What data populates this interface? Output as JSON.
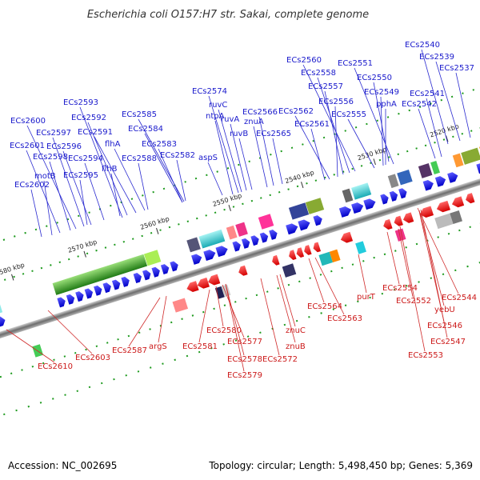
{
  "title": "Escherichia coli O157:H7 str. Sakai, complete genome",
  "footer": {
    "accession": "Accession: NC_002695",
    "summary": "Topology: circular; Length: 5,498,450 bp; Genes: 5,369"
  },
  "scale_ticks": [
    "2520 kbp",
    "2530 kbp",
    "2540 kbp",
    "2550 kbp",
    "2560 kbp",
    "2570 kbp",
    "2580 kbp"
  ],
  "forward_labels": [
    "ECs2540",
    "ECs2539",
    "ECs2537",
    "ECs2551",
    "ECs2550",
    "ECs2560",
    "ECs2558",
    "ECs2557",
    "ECs2549",
    "ECs2541",
    "ECs2542",
    "ECs2556",
    "ECs2574",
    "ECs2562",
    "ECs2555",
    "pphA",
    "ruvC",
    "ECs2566",
    "ruvA",
    "znuA",
    "ECs2561",
    "ntpA",
    "ruvB",
    "ECs2565",
    "ECs2593",
    "ECs2585",
    "ECs2592",
    "ECs2600",
    "ECs2584",
    "ECs2597",
    "ECs2591",
    "flhA",
    "ECs2601",
    "ECs2596",
    "ECs2583",
    "ECs2598",
    "ECs2594",
    "ECs2588",
    "ECs2582",
    "aspS",
    "motB",
    "flhB",
    "ECs2595",
    "ECs2602"
  ],
  "reverse_labels": [
    "purT",
    "ECs2554",
    "ECs2552",
    "ECs2544",
    "yebU",
    "ECs2564",
    "ECs2546",
    "ECs2563",
    "ECs2547",
    "ECs2553",
    "ECs2580",
    "ECs2577",
    "znuC",
    "ECs2581",
    "ECs2578",
    "ECs2587",
    "argS",
    "znuB",
    "ECs2572",
    "ECs2603",
    "ECs2579",
    "ECs2610"
  ]
}
